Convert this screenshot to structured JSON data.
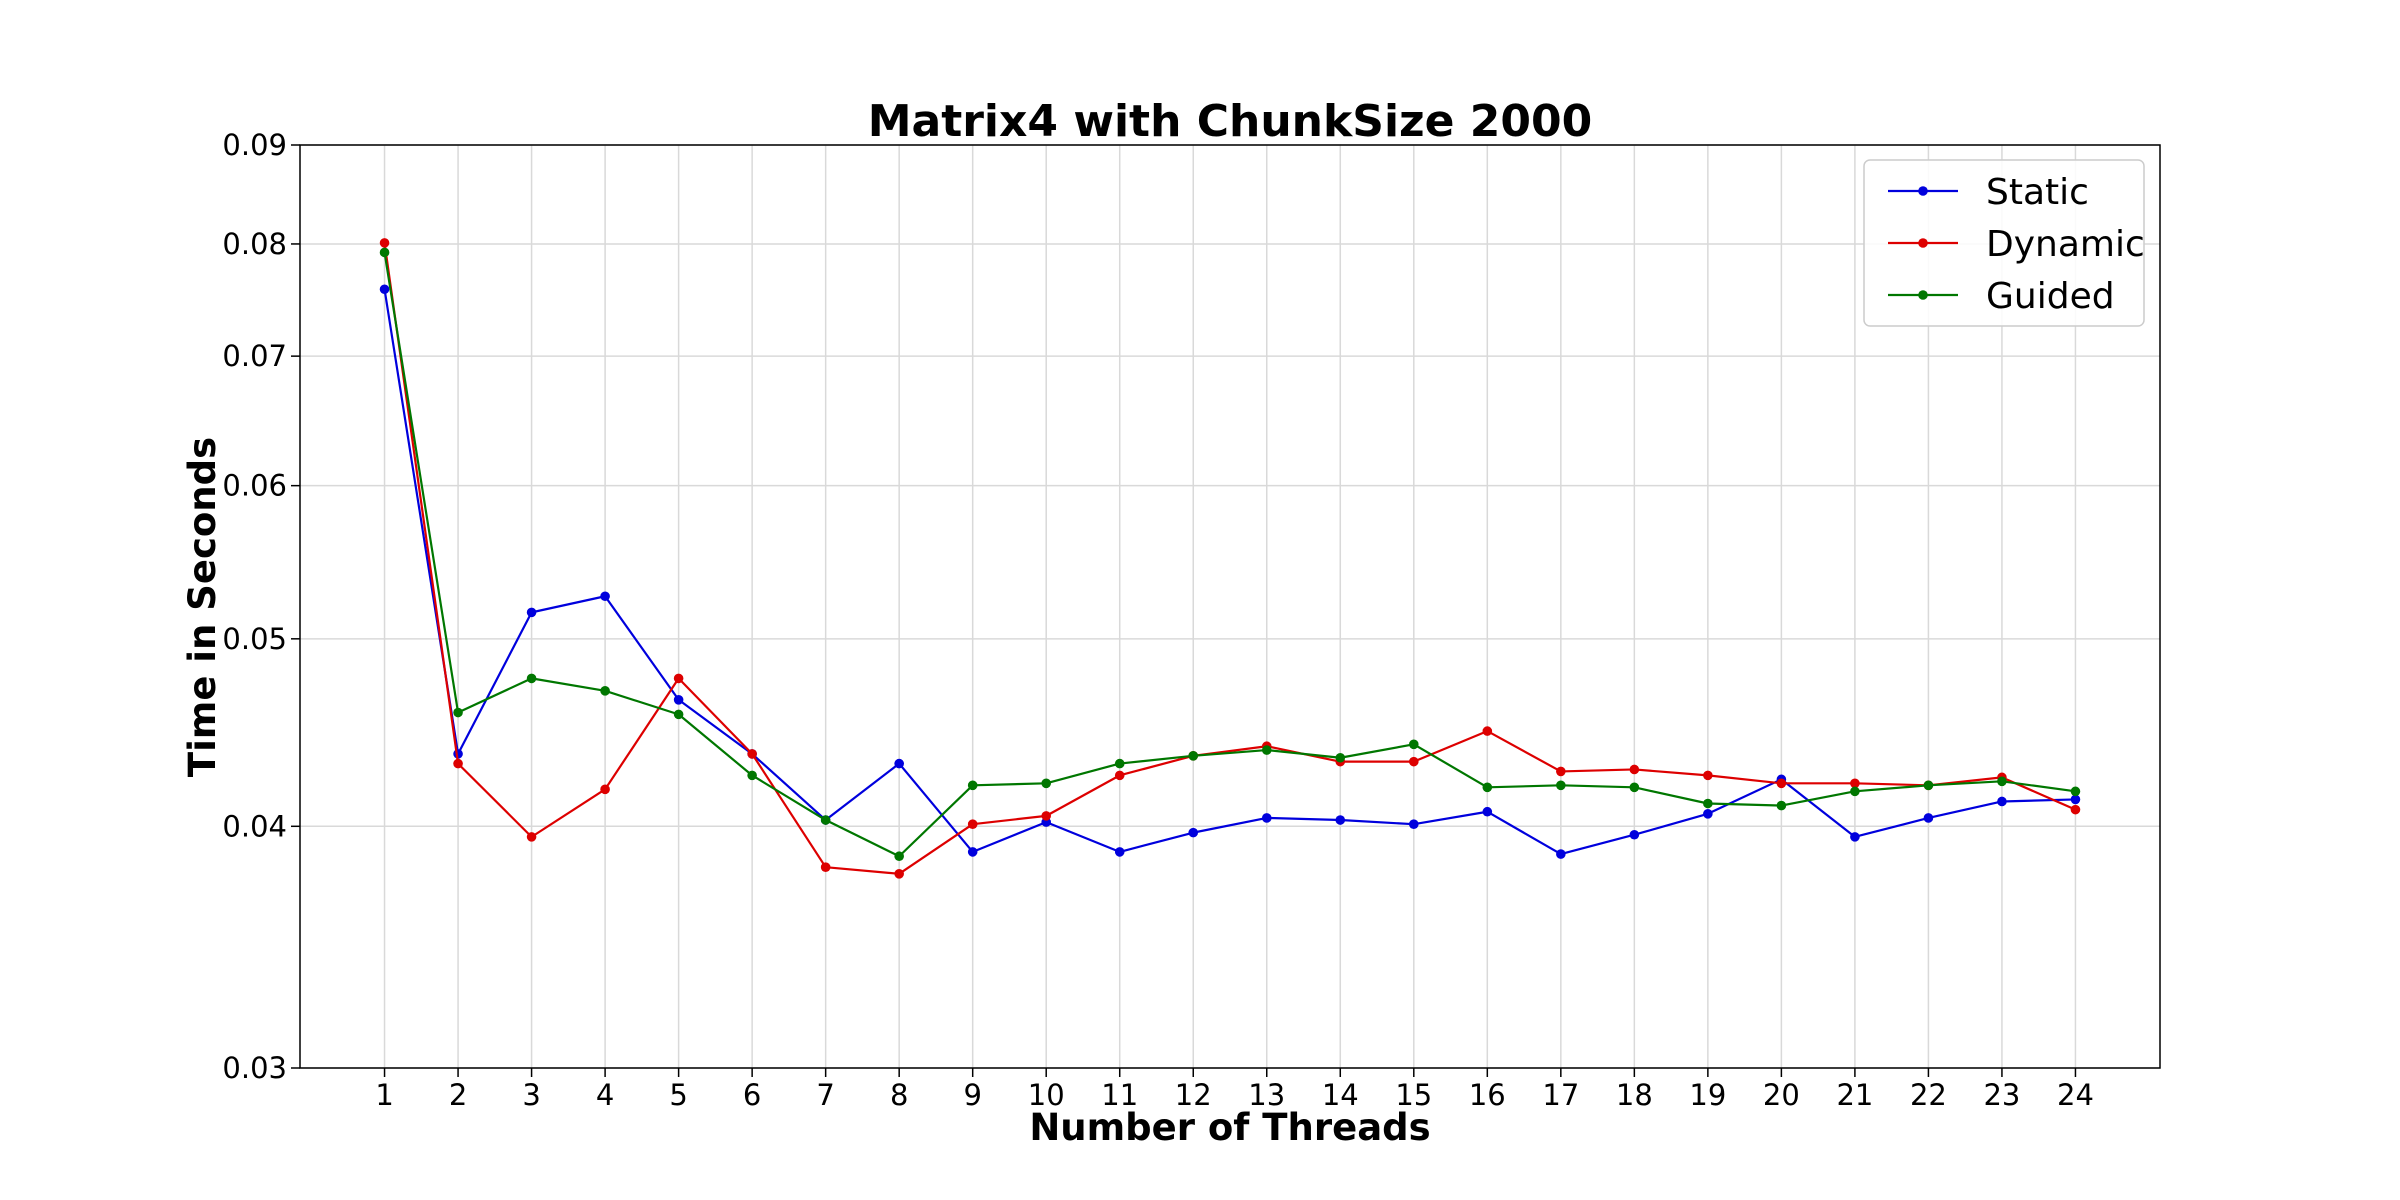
{
  "chart_data": {
    "type": "line",
    "title": "Matrix4 with ChunkSize 2000",
    "xlabel": "Number of Threads",
    "ylabel": "Time in Seconds",
    "yscale": "log",
    "ylim": [
      0.03,
      0.09
    ],
    "xlim": [
      -0.15,
      25.15
    ],
    "grid": true,
    "legend_position": "top-right",
    "x": [
      1,
      2,
      3,
      4,
      5,
      6,
      7,
      8,
      9,
      10,
      11,
      12,
      13,
      14,
      15,
      16,
      17,
      18,
      19,
      20,
      21,
      22,
      23,
      24
    ],
    "yticks": [
      0.03,
      0.04,
      0.05,
      0.06,
      0.07,
      0.08,
      0.09
    ],
    "ytick_labels": [
      "0.03",
      "0.04",
      "0.05",
      "0.06",
      "0.07",
      "0.08",
      "0.09"
    ],
    "xtick_labels": [
      "1",
      "2",
      "3",
      "4",
      "5",
      "6",
      "7",
      "8",
      "9",
      "10",
      "11",
      "12",
      "13",
      "14",
      "15",
      "16",
      "17",
      "18",
      "19",
      "20",
      "21",
      "22",
      "23",
      "24"
    ],
    "series": [
      {
        "name": "Static",
        "color": "#0000dd",
        "values": [
          0.0758,
          0.0436,
          0.0516,
          0.0526,
          0.0465,
          0.0436,
          0.0403,
          0.0431,
          0.0388,
          0.0402,
          0.0388,
          0.0397,
          0.0404,
          0.0403,
          0.0401,
          0.0407,
          0.0387,
          0.0396,
          0.0406,
          0.0423,
          0.0395,
          0.0404,
          0.0412,
          0.0413
        ]
      },
      {
        "name": "Dynamic",
        "color": "#dd0000",
        "values": [
          0.0801,
          0.0431,
          0.0395,
          0.0418,
          0.0477,
          0.0436,
          0.0381,
          0.0378,
          0.0401,
          0.0405,
          0.0425,
          0.0435,
          0.044,
          0.0432,
          0.0432,
          0.0448,
          0.0427,
          0.0428,
          0.0425,
          0.0421,
          0.0421,
          0.042,
          0.0424,
          0.0408
        ]
      },
      {
        "name": "Guided",
        "color": "#007700",
        "values": [
          0.0792,
          0.0458,
          0.0477,
          0.047,
          0.0457,
          0.0425,
          0.0403,
          0.0386,
          0.042,
          0.0421,
          0.0431,
          0.0435,
          0.0438,
          0.0434,
          0.0441,
          0.0419,
          0.042,
          0.0419,
          0.0411,
          0.041,
          0.0417,
          0.042,
          0.0422,
          0.0417
        ]
      }
    ]
  }
}
